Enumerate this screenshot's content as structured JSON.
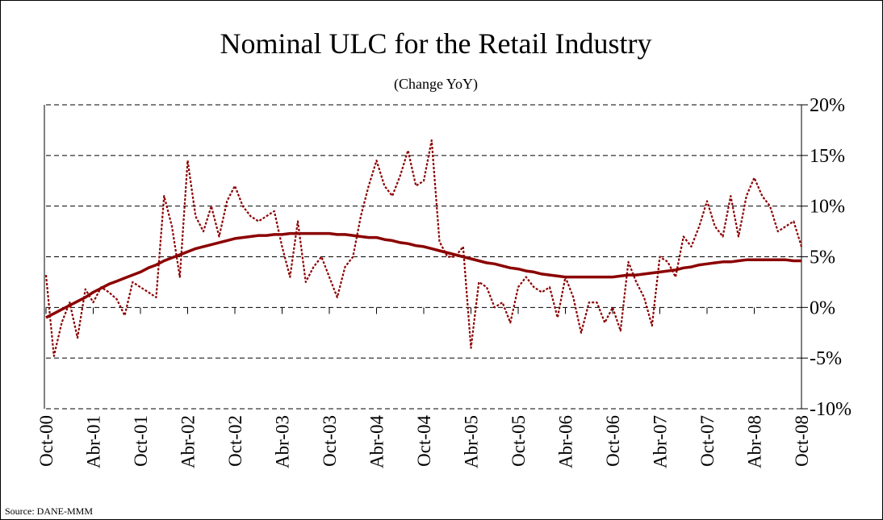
{
  "chart_data": {
    "type": "line",
    "title": "Nominal ULC for the Retail Industry",
    "subtitle": "(Change YoY)",
    "source": "Source: DANE-MMM",
    "categories": [
      "Oct-00",
      null,
      null,
      null,
      null,
      null,
      "Abr-01",
      null,
      null,
      null,
      null,
      null,
      "Oct-01",
      null,
      null,
      null,
      null,
      null,
      "Abr-02",
      null,
      null,
      null,
      null,
      null,
      "Oct-02",
      null,
      null,
      null,
      null,
      null,
      "Abr-03",
      null,
      null,
      null,
      null,
      null,
      "Oct-03",
      null,
      null,
      null,
      null,
      null,
      "Abr-04",
      null,
      null,
      null,
      null,
      null,
      "Oct-04",
      null,
      null,
      null,
      null,
      null,
      "Abr-05",
      null,
      null,
      null,
      null,
      null,
      "Oct-05",
      null,
      null,
      null,
      null,
      null,
      "Abr-06",
      null,
      null,
      null,
      null,
      null,
      "Oct-06",
      null,
      null,
      null,
      null,
      null,
      "Abr-07",
      null,
      null,
      null,
      null,
      null,
      "Oct-07",
      null,
      null,
      null,
      null,
      null,
      "Abr-08",
      null,
      null,
      null,
      null,
      null,
      "Oct-08"
    ],
    "series": [
      {
        "color": "#8b0000",
        "dash": "dotted",
        "values": [
          3.2,
          -4.8,
          -1.5,
          0.5,
          -3.0,
          1.8,
          0.5,
          2.0,
          1.5,
          0.8,
          -0.8,
          2.5,
          2.0,
          1.5,
          1.0,
          11.0,
          8.0,
          3.0,
          14.5,
          9.0,
          7.5,
          10.0,
          7.0,
          10.5,
          12.0,
          10.0,
          9.0,
          8.5,
          9.0,
          9.5,
          6.0,
          3.0,
          8.5,
          2.5,
          4.0,
          5.0,
          3.0,
          1.0,
          4.0,
          5.0,
          9.0,
          12.0,
          14.5,
          12.0,
          11.0,
          13.0,
          15.5,
          12.0,
          12.5,
          16.5,
          6.5,
          5.0,
          5.0,
          6.0,
          -4.0,
          2.5,
          2.0,
          0.0,
          0.5,
          -1.5,
          2.0,
          3.0,
          2.0,
          1.5,
          2.0,
          -1.0,
          3.0,
          1.0,
          -2.5,
          0.5,
          0.5,
          -1.5,
          0.0,
          -2.3,
          4.5,
          2.5,
          1.0,
          -1.8,
          5.0,
          4.5,
          3.0,
          7.0,
          6.0,
          8.0,
          10.5,
          8.0,
          7.0,
          11.0,
          7.0,
          11.0,
          12.8,
          11.0,
          10.0,
          7.5,
          8.0,
          8.5,
          6.0
        ]
      },
      {
        "color": "#8b0000",
        "dash": "solid",
        "values": [
          -1.0,
          -0.6,
          -0.2,
          0.2,
          0.6,
          1.0,
          1.5,
          1.9,
          2.3,
          2.6,
          2.9,
          3.2,
          3.5,
          3.9,
          4.2,
          4.6,
          4.9,
          5.2,
          5.5,
          5.8,
          6.0,
          6.2,
          6.4,
          6.6,
          6.8,
          6.9,
          7.0,
          7.1,
          7.1,
          7.2,
          7.2,
          7.3,
          7.3,
          7.3,
          7.3,
          7.3,
          7.3,
          7.2,
          7.2,
          7.1,
          7.0,
          6.9,
          6.9,
          6.7,
          6.6,
          6.4,
          6.3,
          6.1,
          6.0,
          5.8,
          5.6,
          5.4,
          5.2,
          5.0,
          4.8,
          4.6,
          4.4,
          4.3,
          4.1,
          3.9,
          3.8,
          3.6,
          3.5,
          3.3,
          3.2,
          3.1,
          3.0,
          3.0,
          3.0,
          3.0,
          3.0,
          3.0,
          3.0,
          3.1,
          3.2,
          3.2,
          3.3,
          3.4,
          3.5,
          3.6,
          3.7,
          3.9,
          4.0,
          4.2,
          4.3,
          4.4,
          4.5,
          4.5,
          4.6,
          4.7,
          4.7,
          4.7,
          4.7,
          4.7,
          4.7,
          4.6,
          4.6
        ]
      }
    ],
    "ylim": [
      -10,
      20
    ],
    "yticks": [
      {
        "value": -10,
        "label": "-10%"
      },
      {
        "value": -5,
        "label": "-5%"
      },
      {
        "value": 0,
        "label": "0%"
      },
      {
        "value": 5,
        "label": "5%"
      },
      {
        "value": 10,
        "label": "10%"
      },
      {
        "value": 15,
        "label": "15%"
      },
      {
        "value": 20,
        "label": "20%"
      }
    ],
    "grid": true
  }
}
